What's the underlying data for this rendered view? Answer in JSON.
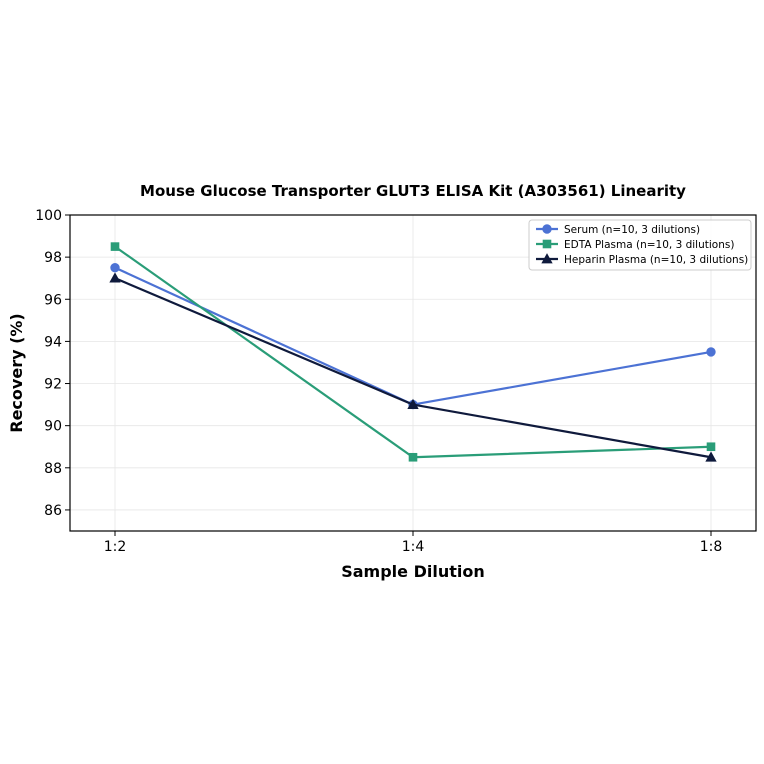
{
  "chart_data": {
    "type": "line",
    "title": "Mouse Glucose Transporter GLUT3 ELISA Kit (A303561) Linearity",
    "xlabel": "Sample Dilution",
    "ylabel": "Recovery (%)",
    "categories": [
      "1:2",
      "1:4",
      "1:8"
    ],
    "ylim": [
      85,
      100
    ],
    "yticks": [
      86,
      88,
      90,
      92,
      94,
      96,
      98,
      100
    ],
    "grid": true,
    "legend_position": "top-right",
    "series": [
      {
        "name": "Serum (n=10, 3 dilutions)",
        "values": [
          97.5,
          91.0,
          93.5
        ],
        "color": "#4c72d4",
        "marker": "circle"
      },
      {
        "name": "EDTA Plasma (n=10, 3 dilutions)",
        "values": [
          98.5,
          88.5,
          89.0
        ],
        "color": "#2a9d78",
        "marker": "square"
      },
      {
        "name": "Heparin Plasma (n=10, 3 dilutions)",
        "values": [
          97.0,
          91.0,
          88.5
        ],
        "color": "#0f1a3c",
        "marker": "triangle"
      }
    ]
  }
}
